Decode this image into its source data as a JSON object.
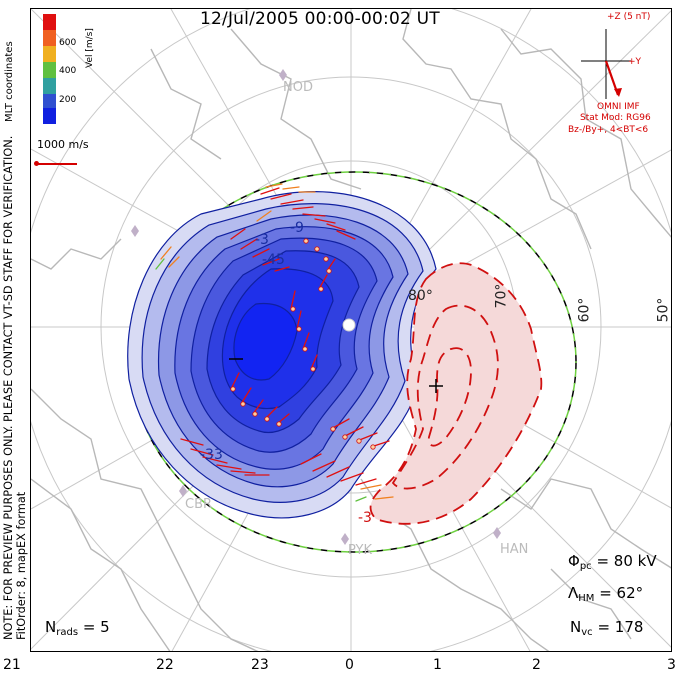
{
  "title": "12/Jul/2005 00:00-00:02 UT",
  "coordinates": "MLT coordinates",
  "velocity_scale": {
    "title": "Vel [m/s]",
    "ticks": [
      "600",
      "400",
      "200"
    ],
    "colors": [
      "#e01010",
      "#f08020",
      "#f0c020",
      "#60c040",
      "#30a0a0",
      "#3050d0",
      "#1020e0"
    ]
  },
  "vector_reference": "1000 m/s",
  "imf": {
    "z_label": "+Z (5 nT)",
    "y_label": "+Y",
    "source": "OMNI IMF",
    "stat_mod": "Stat Mod: RG96",
    "condition": "Bz-/By+, 4<BT<6",
    "color": "#d40000"
  },
  "note": "NOTE: FOR PREVIEW PURPOSES ONLY. PLEASE CONTACT VT-SD STAFF FOR VERIFICATION.",
  "fit_order": "FitOrder: 8, mapEX format",
  "stats": {
    "nrads_label": "N",
    "nrads_sub": "rads",
    "nrads_value": "= 5",
    "phi_label": "Φ",
    "phi_sub": "pc",
    "phi_value": "= 80 kV",
    "lam_label": "Λ",
    "lam_sub": "HM",
    "lam_value": "= 62°",
    "nvc_label": "N",
    "nvc_sub": "vc",
    "nvc_value": "= 178"
  },
  "mlt_ticks": [
    "21",
    "22",
    "23",
    "0",
    "1",
    "2",
    "3"
  ],
  "latitude_labels": [
    "80°",
    "70°",
    "60°",
    "50°"
  ],
  "stations": [
    "NOD",
    "CBR",
    "PYK",
    "HAN"
  ],
  "contour_labels": [
    "-3",
    "-45",
    "-33",
    "-9",
    "-3"
  ],
  "colors": {
    "negative_fill": "#2030e0",
    "positive_fill": "#f5d9d9",
    "negative_contour": "#1020a0",
    "positive_contour": "#d01010",
    "boundary_dash": "#6ed040"
  }
}
